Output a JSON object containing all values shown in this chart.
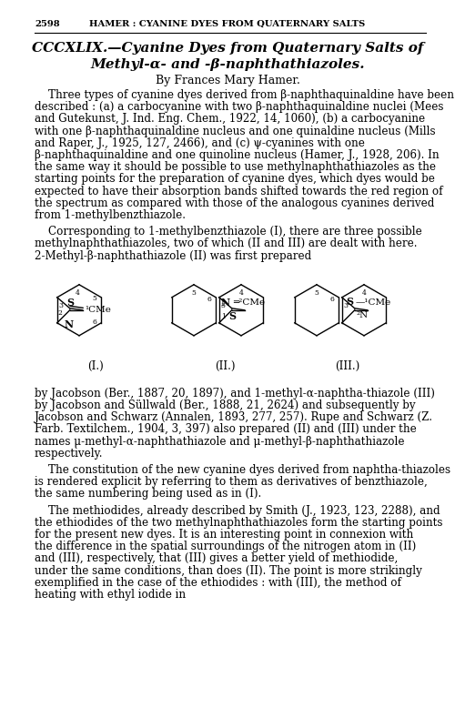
{
  "page_number": "2598",
  "header": "HAMER : CYANINE DYES FROM QUATERNARY SALTS",
  "title_line1": "CCCXLIX.—Cyanine Dyes from Quaternary Salts of",
  "title_line2": "Methyl-α- and -β-naphthathiazoles.",
  "author": "By Frances Mary Hamer.",
  "para1": "Three types of cyanine dyes derived from β-naphthaquinaldine have been described : (a) a carbocyanine with two β-naphthaquinaldine nuclei (Mees and Gutekunst, J. Ind. Eng. Chem., 1922, 14, 1060), (b) a carbocyanine with one β-naphthaquinaldine nucleus and one quinaldine nucleus (Mills and Raper, J., 1925, 127, 2466), and (c) ψ-cyanines with one β-naphthaquinaldine and one quinoline nucleus (Hamer, J., 1928, 206).  In the same way it should be possible to use methylnaphthathiazoles as the starting points for the preparation of cyanine dyes, which dyes would be expected to have their absorption bands shifted towards the red region of the spectrum as compared with those of the analogous cyanines derived from 1-methylbenzthiazole.",
  "para2": "Corresponding to 1-methylbenzthiazole (I), there are three possible methylnaphthathiazoles, two of which (II and III) are dealt with here.  2-Methyl-β-naphthathiazole (II) was first prepared",
  "para3": "by Jacobson (Ber., 1887, 20, 1897), and 1-methyl-α-naphtha-thiazole (III) by Jacobson and Süllwald (Ber., 1888, 21, 2624) and subsequently by Jacobson and Schwarz (Annalen, 1893, 277, 257). Rupe and Schwarz (Z. Farb. Textilchem., 1904, 3, 397) also prepared (II) and (III) under the names μ-methyl-α-naphthathiazole and μ-methyl-β-naphthathiazole respectively.",
  "para4": "The constitution of the new cyanine dyes derived from naphtha-thiazoles is rendered explicit by referring to them as derivatives of benzthiazole, the same numbering being used as in (I).",
  "para5": "The methiodides, already described by Smith (J., 1923, 123, 2288), and the ethiodides of the two methylnaphthathiazoles form the starting points for the present new dyes.  It is an interesting point in connexion with the difference in the spatial surroundings of the nitrogen atom in (II) and (III), respectively, that (III) gives a better yield of methiodide, under the same conditions, than does (II).  The point is more strikingly exemplified in the case of the ethiodides : with (III), the method of heating with ethyl iodide in",
  "bg_color": "#ffffff",
  "text_color": "#000000"
}
